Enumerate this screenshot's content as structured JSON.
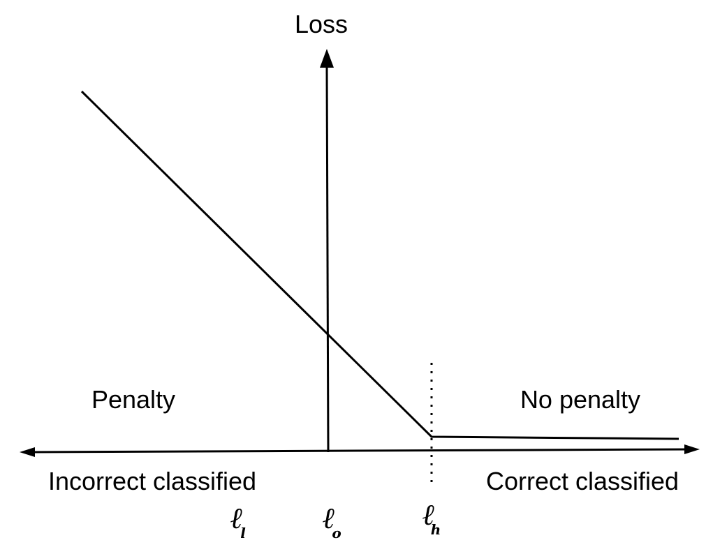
{
  "axis": {
    "y_label": "Loss"
  },
  "regions": {
    "left_label": "Penalty",
    "right_label": "No penalty"
  },
  "x_sides": {
    "left_label": "Incorrect classified",
    "right_label": "Correct classified"
  },
  "markers": [
    {
      "symbol": "ℓ",
      "subscript": "l"
    },
    {
      "symbol": "ℓ",
      "subscript": "o"
    },
    {
      "symbol": "ℓ",
      "subscript": "h"
    }
  ]
}
